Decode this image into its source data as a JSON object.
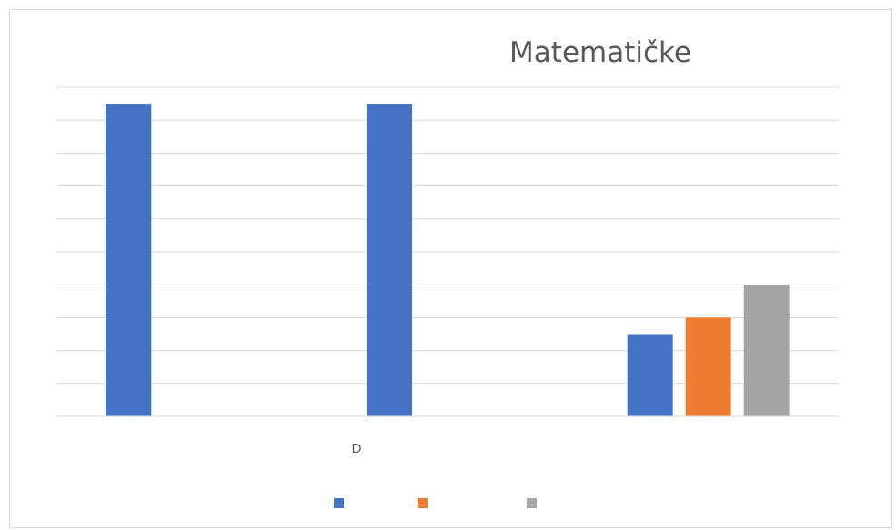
{
  "chart_data": {
    "type": "bar",
    "title": "Matematičke",
    "categories": [
      "",
      "",
      ""
    ],
    "series": [
      {
        "values": [
          95,
          95,
          25
        ],
        "color": "#4472c4"
      },
      {
        "values": [
          0,
          0,
          30
        ],
        "color": "#ed7d31"
      },
      {
        "values": [
          0,
          0,
          40
        ],
        "color": "#a5a5a5"
      }
    ],
    "ylim": [
      0,
      100
    ],
    "grid": true,
    "gridline_count": 10,
    "legend_position": "bottom",
    "xaxis_label_fragment": "D"
  }
}
